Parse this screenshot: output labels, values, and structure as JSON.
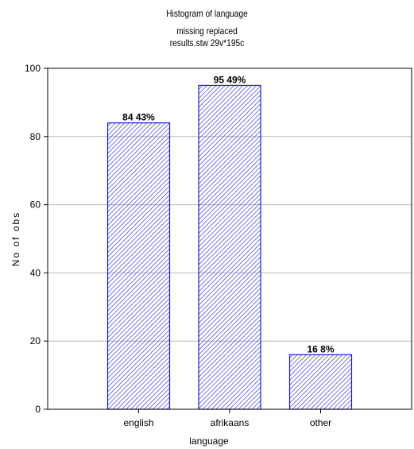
{
  "chart_data": {
    "type": "bar",
    "title": "Histogram of language",
    "subtitle_lines": [
      "missing replaced",
      "results.stw 29v*195c"
    ],
    "xlabel": "language",
    "ylabel": "No of obs",
    "categories": [
      "english",
      "afrikaans",
      "other"
    ],
    "values": [
      84,
      95,
      16
    ],
    "data_labels": [
      "84 43%",
      "95 49%",
      "16 8%"
    ],
    "ylim": [
      0,
      100
    ],
    "yticks": [
      0,
      20,
      40,
      60,
      80,
      100
    ],
    "grid": true,
    "bar_fill": "hatched",
    "colors": {
      "bar": "#1a1ad8",
      "hatch": "#2b2bd8",
      "axis": "#000000",
      "grid": "#b8b8b8"
    }
  }
}
